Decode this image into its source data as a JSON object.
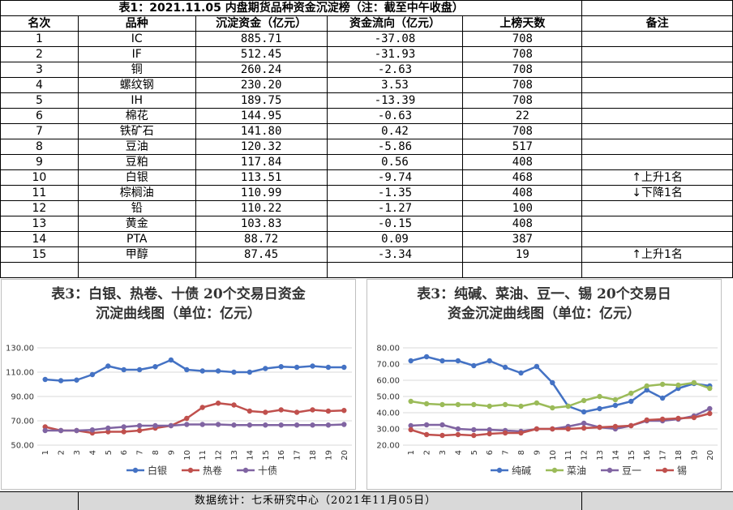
{
  "table": {
    "title": "表1：2021.11.05 内盘期货品种资金沉淀榜（注：截至中午收盘）",
    "headers": [
      "名次",
      "品种",
      "沉淀资金（亿元）",
      "资金流向（亿元）",
      "上榜天数",
      "备注"
    ],
    "rows": [
      [
        "1",
        "IC",
        "885.71",
        "-37.08",
        "708",
        ""
      ],
      [
        "2",
        "IF",
        "512.45",
        "-31.93",
        "708",
        ""
      ],
      [
        "3",
        "铜",
        "260.24",
        "-2.63",
        "708",
        ""
      ],
      [
        "4",
        "螺纹钢",
        "230.20",
        "3.53",
        "708",
        ""
      ],
      [
        "5",
        "IH",
        "189.75",
        "-13.39",
        "708",
        ""
      ],
      [
        "6",
        "棉花",
        "144.95",
        "-0.63",
        "22",
        ""
      ],
      [
        "7",
        "铁矿石",
        "141.80",
        "0.42",
        "708",
        ""
      ],
      [
        "8",
        "豆油",
        "120.32",
        "-5.86",
        "517",
        ""
      ],
      [
        "9",
        "豆粕",
        "117.84",
        "0.56",
        "408",
        ""
      ],
      [
        "10",
        "白银",
        "113.51",
        "-9.74",
        "468",
        "↑上升1名"
      ],
      [
        "11",
        "棕榈油",
        "110.99",
        "-1.35",
        "408",
        "↓下降1名"
      ],
      [
        "12",
        "铅",
        "110.22",
        "-1.27",
        "100",
        ""
      ],
      [
        "13",
        "黄金",
        "103.83",
        "-0.15",
        "408",
        ""
      ],
      [
        "14",
        "PTA",
        "88.72",
        "0.09",
        "387",
        ""
      ],
      [
        "15",
        "甲醇",
        "87.45",
        "-3.34",
        "19",
        "↑上升1名"
      ]
    ]
  },
  "chart_data": [
    {
      "type": "line",
      "title": "表3：白银、热卷、十债 20个交易日资金沉淀曲线图（单位：亿元）",
      "title_lines": [
        "表3：白银、热卷、十债 20个交易日资金",
        "沉淀曲线图（单位：亿元）"
      ],
      "x": [
        "1",
        "2",
        "3",
        "4",
        "5",
        "6",
        "7",
        "8",
        "9",
        "10",
        "11",
        "12",
        "13",
        "14",
        "15",
        "16",
        "17",
        "18",
        "19",
        "20"
      ],
      "ylim": [
        50,
        130
      ],
      "yticks": [
        "50.00",
        "70.00",
        "90.00",
        "110.00",
        "130.00"
      ],
      "grid": true,
      "legend": "bottom",
      "series": [
        {
          "name": "白银",
          "color": "#4472c4",
          "values": [
            104,
            103,
            103.5,
            108,
            115,
            112,
            112,
            114.5,
            120,
            112,
            111,
            111,
            110,
            110,
            113,
            114.5,
            114,
            115,
            114,
            114
          ]
        },
        {
          "name": "热卷",
          "color": "#c0504d",
          "values": [
            65,
            62,
            62,
            60,
            61,
            61,
            62,
            64,
            66,
            72,
            81,
            84.5,
            83,
            78,
            77,
            79,
            77,
            79,
            78,
            78.5
          ]
        },
        {
          "name": "十债",
          "color": "#8064a2",
          "values": [
            62,
            62,
            62,
            62.5,
            64,
            65,
            66,
            66,
            66,
            67,
            67,
            67,
            66.5,
            66.5,
            66.5,
            66.5,
            66.5,
            66.5,
            66.5,
            67
          ]
        }
      ]
    },
    {
      "type": "line",
      "title": "表3：纯碱、菜油、豆一、锡 20个交易日资金沉淀曲线图（单位：亿元）",
      "title_lines": [
        "表3：纯碱、菜油、豆一、锡 20个交易日",
        "资金沉淀曲线图（单位：亿元）"
      ],
      "x": [
        "1",
        "2",
        "3",
        "4",
        "5",
        "6",
        "7",
        "8",
        "9",
        "10",
        "11",
        "12",
        "13",
        "14",
        "15",
        "16",
        "17",
        "18",
        "19",
        "20"
      ],
      "ylim": [
        20,
        80
      ],
      "yticks": [
        "20.00",
        "30.00",
        "40.00",
        "50.00",
        "60.00",
        "70.00",
        "80.00"
      ],
      "grid": true,
      "legend": "bottom",
      "series": [
        {
          "name": "纯碱",
          "color": "#4472c4",
          "values": [
            72,
            74.5,
            72,
            72,
            69,
            72,
            68,
            64.5,
            68.5,
            58.5,
            44,
            40.5,
            42.5,
            44.5,
            47,
            54,
            49,
            55,
            58,
            56.5
          ]
        },
        {
          "name": "菜油",
          "color": "#9bbb59",
          "values": [
            47,
            45.5,
            45,
            45,
            45,
            44,
            45,
            44,
            46,
            43,
            44,
            47.5,
            50,
            48,
            52,
            56.5,
            57.5,
            57,
            58.5,
            55
          ]
        },
        {
          "name": "豆一",
          "color": "#8064a2",
          "values": [
            32,
            32.5,
            32.5,
            30,
            29.5,
            29.5,
            29,
            28.5,
            30,
            30,
            31.5,
            33.5,
            31,
            30,
            32,
            35,
            35,
            36,
            38,
            42.5
          ]
        },
        {
          "name": "锡",
          "color": "#c0504d",
          "values": [
            29.5,
            26.5,
            26,
            26.5,
            26,
            27,
            27.5,
            27.5,
            30,
            30,
            30,
            30.5,
            31,
            31.5,
            32,
            35.5,
            36,
            36.5,
            37,
            39.5
          ]
        }
      ]
    }
  ],
  "footer": {
    "text": "数据统计：七禾研究中心（2021年11月05日）"
  }
}
